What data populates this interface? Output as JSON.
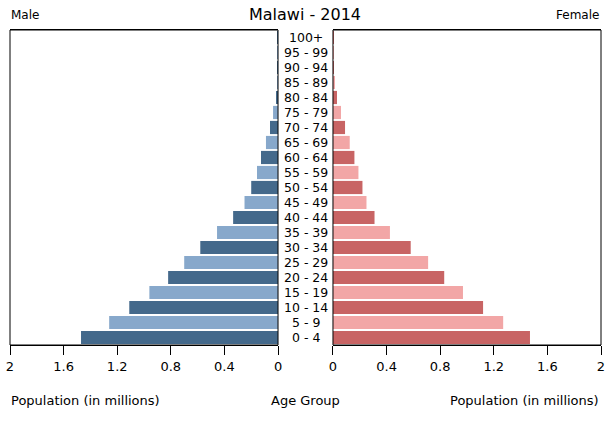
{
  "chart_data": {
    "type": "bar",
    "title": "Malawi - 2014",
    "orientation": "horizontal",
    "xlabel": "Population (in millions)",
    "ylabel": "Age Group",
    "categories": [
      "0 - 4",
      "5 - 9",
      "10 - 14",
      "15 - 19",
      "20 - 24",
      "25 - 29",
      "30 - 34",
      "35 - 39",
      "40 - 44",
      "45 - 49",
      "50 - 54",
      "55 - 59",
      "60 - 64",
      "65 - 69",
      "70 - 74",
      "75 - 79",
      "80 - 84",
      "85 - 89",
      "90 - 94",
      "95 - 99",
      "100+"
    ],
    "series": [
      {
        "name": "Male",
        "colors": [
          "#44698b",
          "#87a8cb",
          "#44698b",
          "#87a8cb",
          "#44698b",
          "#87a8cb",
          "#44698b",
          "#87a8cb",
          "#44698b",
          "#87a8cb",
          "#44698b",
          "#87a8cb",
          "#44698b",
          "#87a8cb",
          "#44698b",
          "#87a8cb",
          "#44698b",
          "#87a8cb",
          "#44698b",
          "#87a8cb",
          "#44698b"
        ],
        "values": [
          1.47,
          1.26,
          1.11,
          0.96,
          0.82,
          0.7,
          0.58,
          0.455,
          0.335,
          0.25,
          0.2,
          0.157,
          0.127,
          0.09,
          0.06,
          0.037,
          0.015,
          0.007,
          0.004,
          0.001,
          0.0003
        ]
      },
      {
        "name": "Female",
        "colors": [
          "#c86464",
          "#f2a6a6",
          "#c86464",
          "#f2a6a6",
          "#c86464",
          "#f2a6a6",
          "#c86464",
          "#f2a6a6",
          "#c86464",
          "#f2a6a6",
          "#c86464",
          "#f2a6a6",
          "#c86464",
          "#f2a6a6",
          "#c86464",
          "#f2a6a6",
          "#c86464",
          "#f2a6a6",
          "#c86464",
          "#f2a6a6",
          "#c86464"
        ],
        "values": [
          1.47,
          1.27,
          1.12,
          0.97,
          0.83,
          0.71,
          0.58,
          0.425,
          0.31,
          0.25,
          0.22,
          0.19,
          0.16,
          0.125,
          0.09,
          0.06,
          0.03,
          0.012,
          0.006,
          0.002,
          0.0005
        ]
      }
    ],
    "xlim": [
      0,
      2
    ],
    "xticks": [
      0,
      0.4,
      0.8,
      1.2,
      1.6,
      2
    ],
    "grid": false
  }
}
